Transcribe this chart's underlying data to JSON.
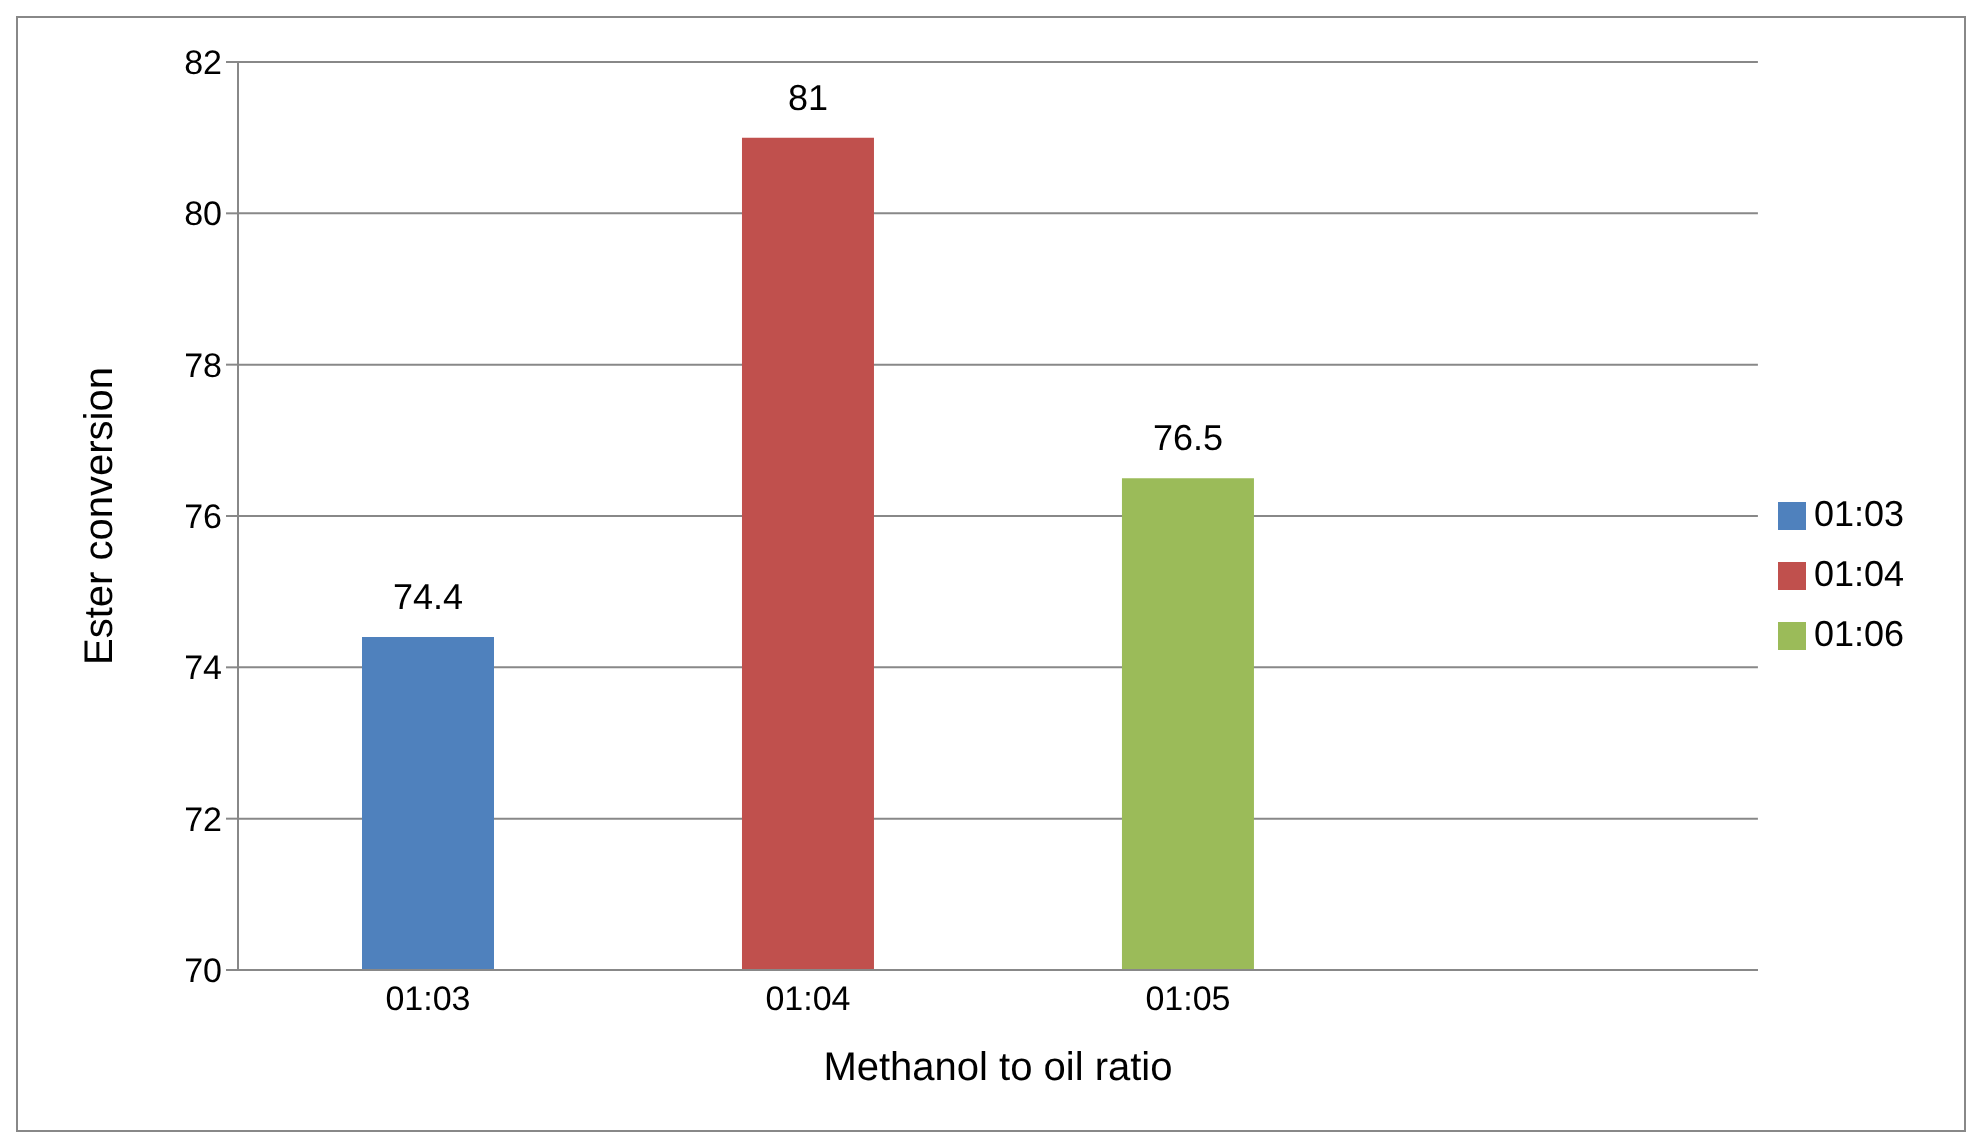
{
  "chart_data": {
    "type": "bar",
    "xlabel": "Methanol to oil ratio",
    "ylabel": "Ester conversion",
    "categories": [
      "01:03",
      "01:04",
      "01:05",
      null
    ],
    "series": [
      {
        "name": "01:03",
        "color": "#4f81bd",
        "values": [
          74.4,
          null,
          null,
          null
        ]
      },
      {
        "name": "01:04",
        "color": "#c0504d",
        "values": [
          null,
          81,
          null,
          null
        ]
      },
      {
        "name": "01:06",
        "color": "#9bbb59",
        "values": [
          null,
          null,
          76.5,
          null
        ]
      }
    ],
    "ylim": [
      70,
      82
    ],
    "yticks": [
      70,
      72,
      74,
      76,
      78,
      80,
      82
    ],
    "grid": "y",
    "legend": "right",
    "data_labels": true
  }
}
